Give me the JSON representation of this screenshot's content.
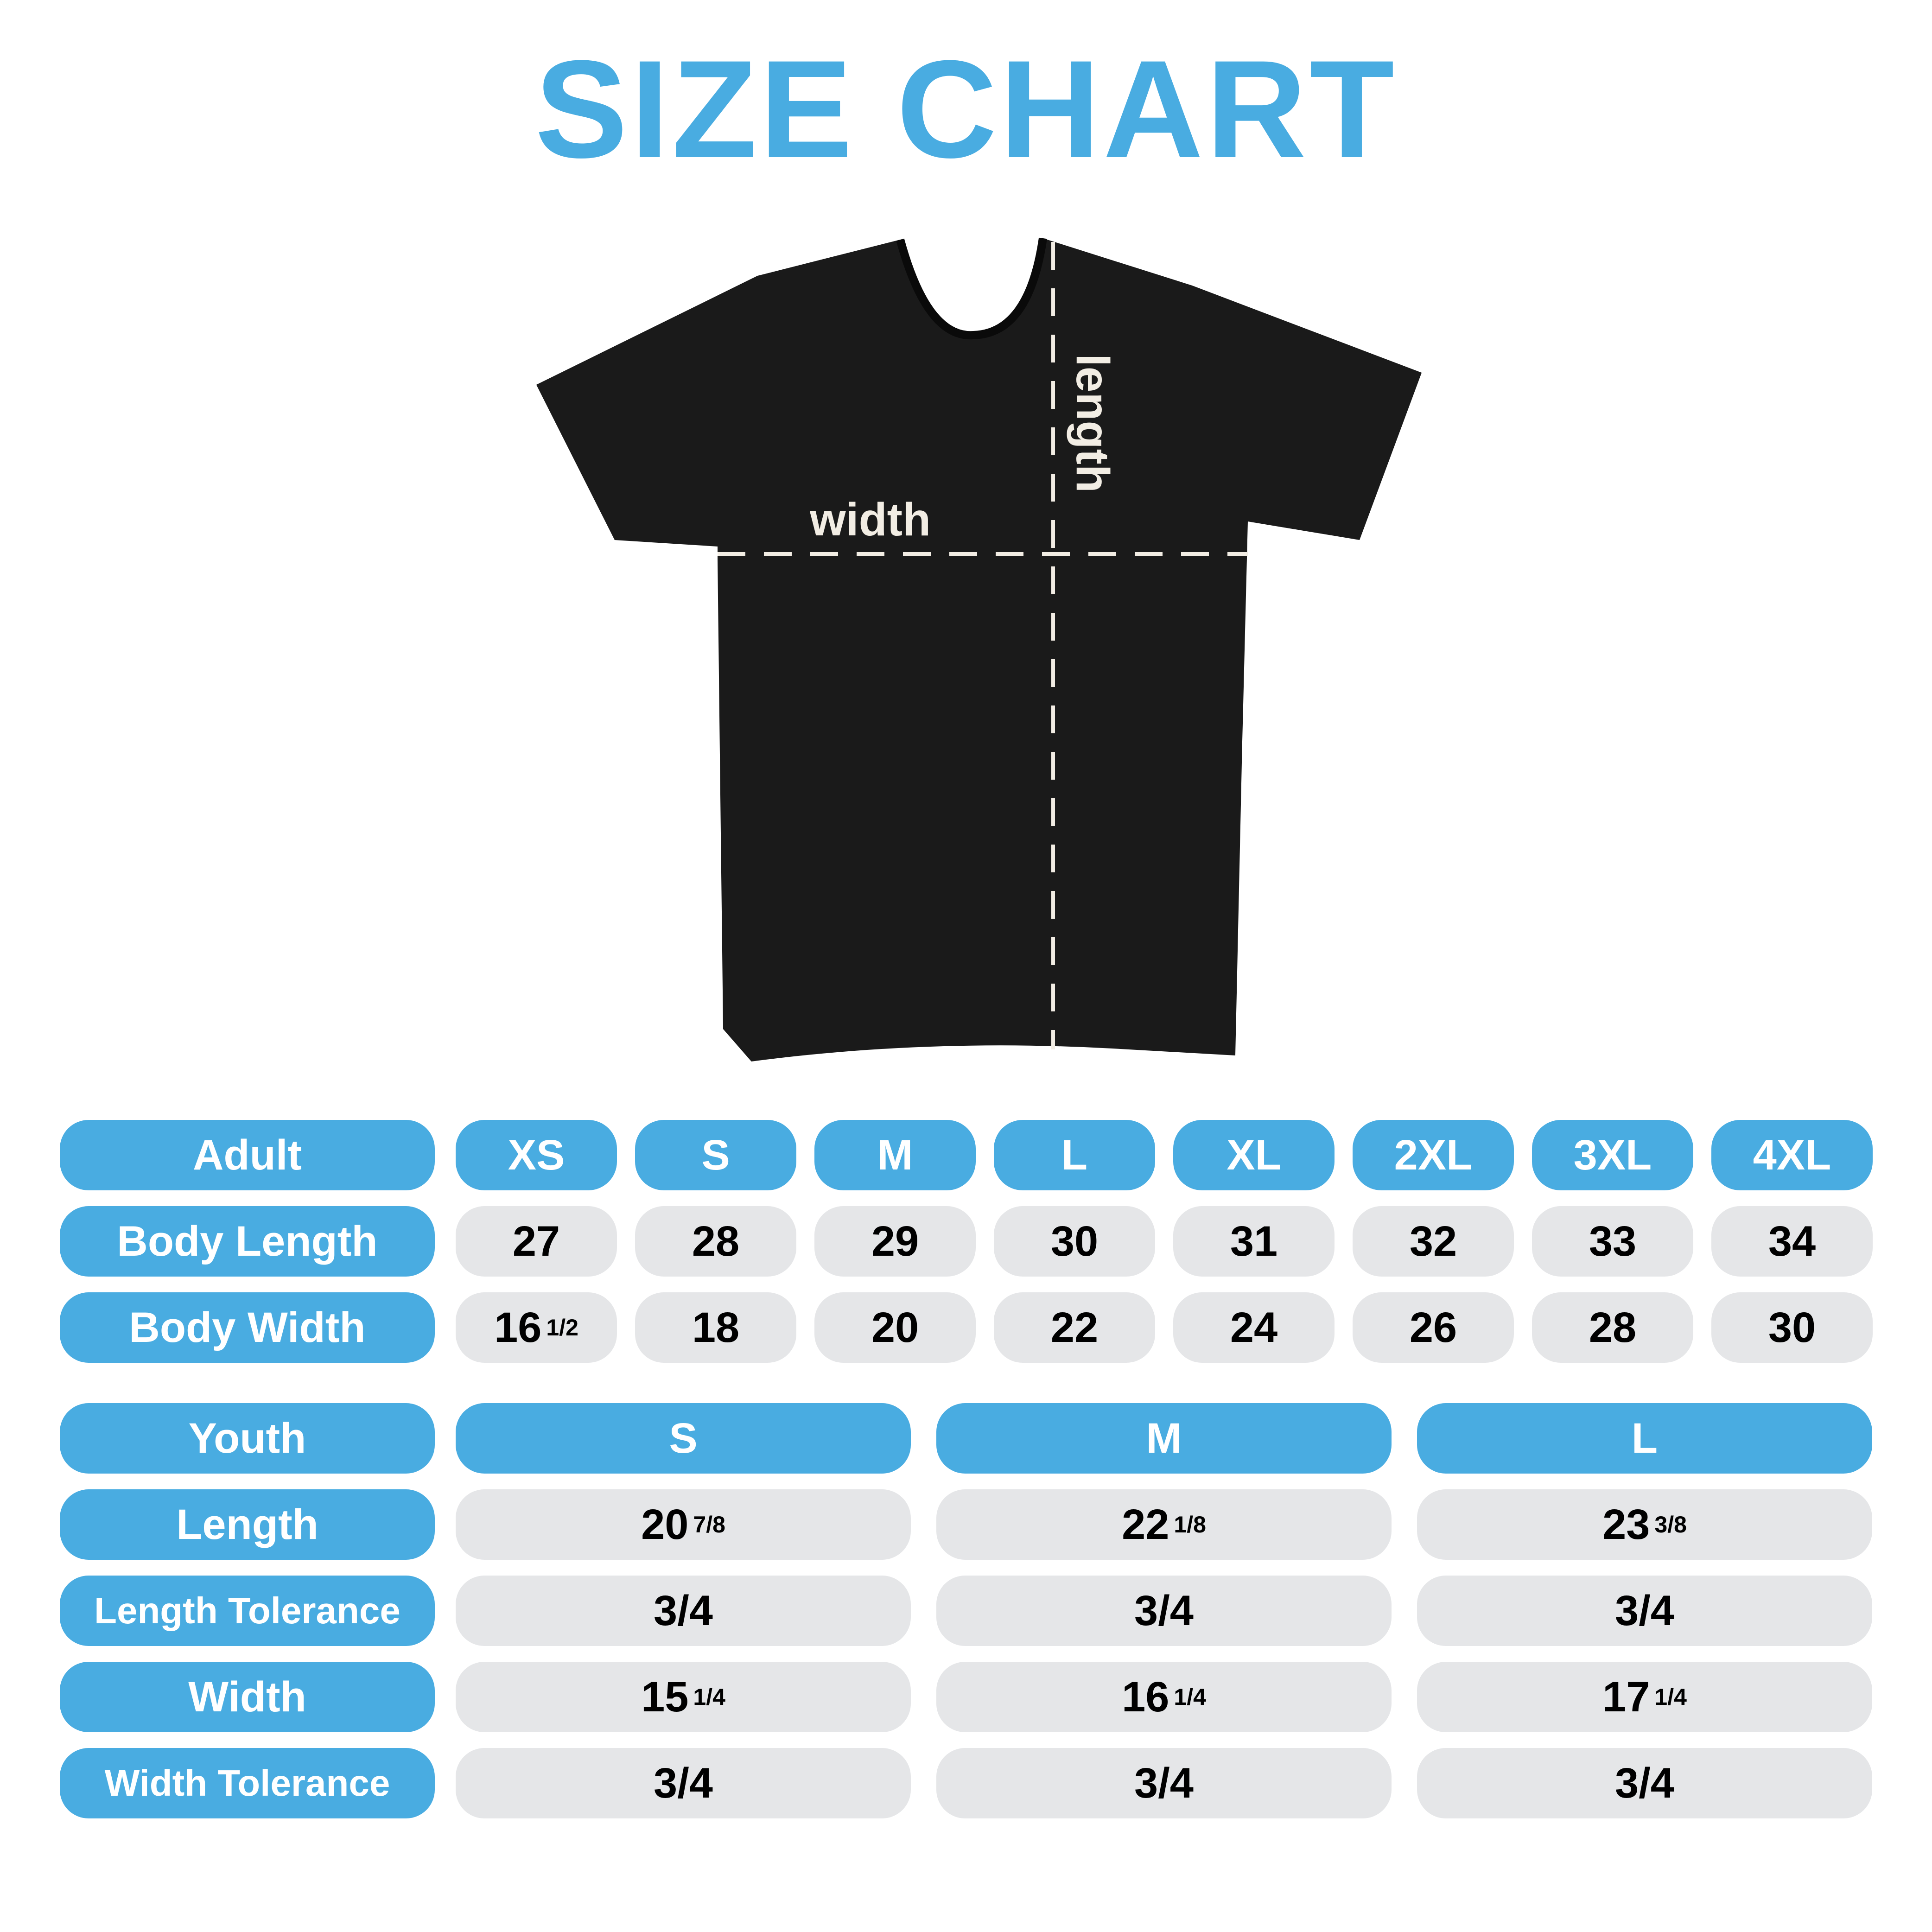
{
  "title": "SIZE CHART",
  "diagram": {
    "width_label": "width",
    "length_label": "length",
    "shirt_color": "#1a1a1a"
  },
  "colors": {
    "accent": "#49ace1",
    "cell": "#e5e6e8"
  },
  "adult": {
    "header": "Adult",
    "sizes": [
      "XS",
      "S",
      "M",
      "L",
      "XL",
      "2XL",
      "3XL",
      "4XL"
    ],
    "rows": [
      {
        "label": "Body Length",
        "values": [
          {
            "whole": "27",
            "frac": ""
          },
          {
            "whole": "28",
            "frac": ""
          },
          {
            "whole": "29",
            "frac": ""
          },
          {
            "whole": "30",
            "frac": ""
          },
          {
            "whole": "31",
            "frac": ""
          },
          {
            "whole": "32",
            "frac": ""
          },
          {
            "whole": "33",
            "frac": ""
          },
          {
            "whole": "34",
            "frac": ""
          }
        ]
      },
      {
        "label": "Body Width",
        "values": [
          {
            "whole": "16",
            "frac": "1/2"
          },
          {
            "whole": "18",
            "frac": ""
          },
          {
            "whole": "20",
            "frac": ""
          },
          {
            "whole": "22",
            "frac": ""
          },
          {
            "whole": "24",
            "frac": ""
          },
          {
            "whole": "26",
            "frac": ""
          },
          {
            "whole": "28",
            "frac": ""
          },
          {
            "whole": "30",
            "frac": ""
          }
        ]
      }
    ]
  },
  "youth": {
    "header": "Youth",
    "sizes": [
      "S",
      "M",
      "L"
    ],
    "rows": [
      {
        "label": "Length",
        "values": [
          {
            "whole": "20",
            "frac": "7/8"
          },
          {
            "whole": "22",
            "frac": "1/8"
          },
          {
            "whole": "23",
            "frac": "3/8"
          }
        ]
      },
      {
        "label": "Length Tolerance",
        "values": [
          {
            "whole": "3/4",
            "frac": ""
          },
          {
            "whole": "3/4",
            "frac": ""
          },
          {
            "whole": "3/4",
            "frac": ""
          }
        ]
      },
      {
        "label": "Width",
        "values": [
          {
            "whole": "15",
            "frac": "1/4"
          },
          {
            "whole": "16",
            "frac": "1/4"
          },
          {
            "whole": "17",
            "frac": "1/4"
          }
        ]
      },
      {
        "label": "Width Tolerance",
        "values": [
          {
            "whole": "3/4",
            "frac": ""
          },
          {
            "whole": "3/4",
            "frac": ""
          },
          {
            "whole": "3/4",
            "frac": ""
          }
        ]
      }
    ]
  }
}
